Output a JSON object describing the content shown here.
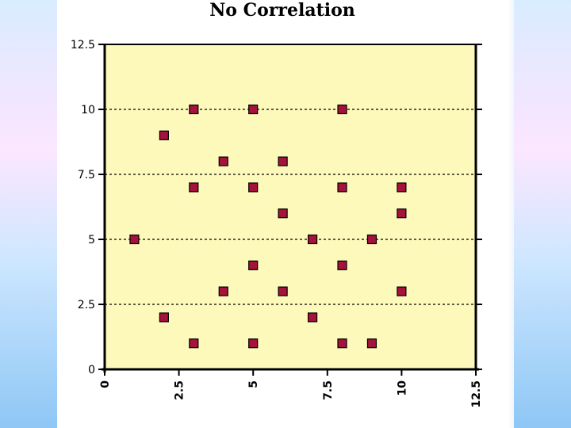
{
  "chart_data": {
    "type": "scatter",
    "title": "No Correlation",
    "xlabel": "",
    "ylabel": "",
    "xlim": [
      0,
      12.5
    ],
    "ylim": [
      0,
      12.5
    ],
    "x_ticks": [
      "0",
      "2.5",
      "5",
      "7.5",
      "10",
      "12.5"
    ],
    "y_ticks": [
      "0",
      "2.5",
      "5",
      "7.5",
      "10",
      "12.5"
    ],
    "grid": "horizontal dashed at 2.5, 5, 7.5, 10",
    "legend": "none",
    "colors": {
      "plot_bg": "#fdf9bb",
      "marker": "#a3133c",
      "marker_border": "#000000"
    },
    "points": [
      {
        "x": 1,
        "y": 5
      },
      {
        "x": 2,
        "y": 9
      },
      {
        "x": 2,
        "y": 2
      },
      {
        "x": 3,
        "y": 10
      },
      {
        "x": 3,
        "y": 7
      },
      {
        "x": 3,
        "y": 1
      },
      {
        "x": 4,
        "y": 8
      },
      {
        "x": 4,
        "y": 3
      },
      {
        "x": 5,
        "y": 10
      },
      {
        "x": 5,
        "y": 7
      },
      {
        "x": 5,
        "y": 4
      },
      {
        "x": 5,
        "y": 1
      },
      {
        "x": 6,
        "y": 8
      },
      {
        "x": 6,
        "y": 6
      },
      {
        "x": 6,
        "y": 3
      },
      {
        "x": 7,
        "y": 5
      },
      {
        "x": 7,
        "y": 2
      },
      {
        "x": 8,
        "y": 10
      },
      {
        "x": 8,
        "y": 7
      },
      {
        "x": 8,
        "y": 4
      },
      {
        "x": 8,
        "y": 1
      },
      {
        "x": 9,
        "y": 5
      },
      {
        "x": 9,
        "y": 1
      },
      {
        "x": 10,
        "y": 7
      },
      {
        "x": 10,
        "y": 6
      },
      {
        "x": 10,
        "y": 3
      }
    ]
  }
}
